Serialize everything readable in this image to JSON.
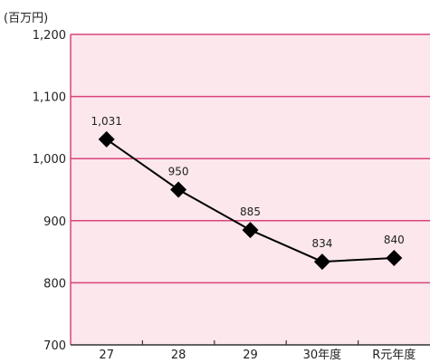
{
  "chart_data": {
    "type": "line",
    "title": "",
    "xlabel": "",
    "ylabel": "(百万円)",
    "categories": [
      "27",
      "28",
      "29",
      "30年度",
      "R元年度"
    ],
    "series": [
      {
        "values": [
          1031,
          950,
          885,
          834,
          840
        ],
        "labels": [
          "1,031",
          "950",
          "885",
          "834",
          "840"
        ]
      }
    ],
    "ylim": [
      700,
      1200
    ],
    "yticks": [
      700,
      800,
      900,
      1000,
      1100,
      1200
    ],
    "ytick_labels": [
      "700",
      "800",
      "900",
      "1,000",
      "1,100",
      "1,200"
    ],
    "grid": true,
    "legend": "none",
    "marker": "diamond"
  },
  "colors": {
    "plot_background": "#fbe7ec",
    "gridline": "#d9457a",
    "axis": "#333333",
    "line": "#000000",
    "marker": "#000000"
  }
}
